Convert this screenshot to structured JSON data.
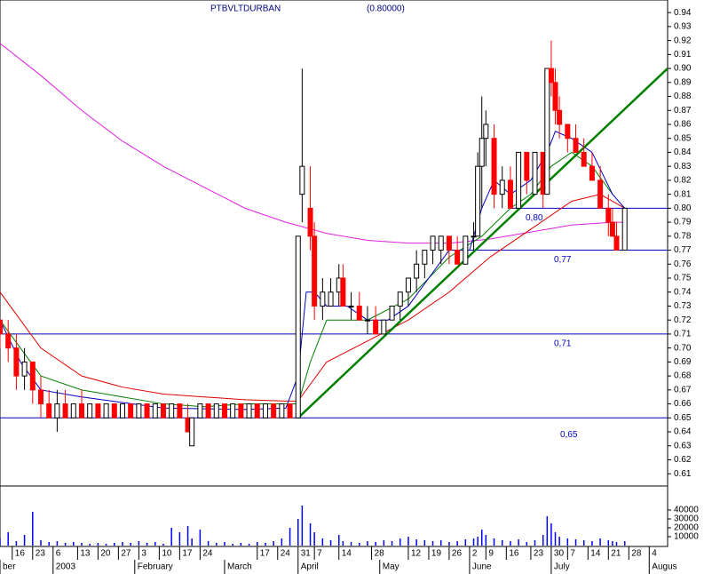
{
  "chart_data": {
    "type": "candlestick",
    "title": "PTBVLTDURBAN",
    "subtitle": "(0.80000)",
    "xlim": [
      0,
      163.5
    ],
    "ylim": [
      0.6025,
      0.949
    ],
    "x": [
      0,
      2,
      4,
      6,
      8,
      10,
      12,
      14,
      16,
      18,
      20,
      22,
      24,
      26,
      28,
      30,
      32,
      34,
      36,
      38,
      40,
      42,
      44,
      46,
      47,
      49,
      51,
      53,
      55,
      57,
      59,
      61,
      63,
      65,
      67,
      69,
      71,
      73,
      74,
      76,
      77,
      79,
      81,
      83,
      84,
      86,
      88,
      90,
      92,
      94,
      96,
      98,
      100,
      102,
      104,
      106,
      108,
      110,
      112,
      114,
      116,
      117,
      118,
      119,
      121,
      123,
      125,
      127,
      129,
      131,
      133,
      134,
      135,
      136,
      137,
      139,
      141,
      143,
      145,
      147,
      149,
      150,
      151,
      153
    ],
    "open": [
      0.72,
      0.71,
      0.7,
      0.68,
      0.69,
      0.67,
      0.66,
      0.65,
      0.66,
      0.65,
      0.66,
      0.65,
      0.66,
      0.65,
      0.66,
      0.65,
      0.66,
      0.65,
      0.66,
      0.65,
      0.66,
      0.65,
      0.66,
      0.65,
      0.63,
      0.65,
      0.66,
      0.65,
      0.66,
      0.65,
      0.66,
      0.65,
      0.66,
      0.65,
      0.66,
      0.65,
      0.66,
      0.65,
      0.81,
      0.8,
      0.78,
      0.73,
      0.73,
      0.74,
      0.75,
      0.73,
      0.73,
      0.72,
      0.72,
      0.71,
      0.72,
      0.73,
      0.74,
      0.75,
      0.76,
      0.77,
      0.77,
      0.78,
      0.77,
      0.76,
      0.78,
      0.78,
      0.83,
      0.85,
      0.85,
      0.81,
      0.82,
      0.8,
      0.84,
      0.81,
      0.84,
      0.81,
      0.9,
      0.89,
      0.87,
      0.86,
      0.85,
      0.84,
      0.83,
      0.82,
      0.8,
      0.79,
      0.78,
      0.77
    ],
    "high": [
      0.72,
      0.72,
      0.71,
      0.7,
      0.69,
      0.68,
      0.67,
      0.67,
      0.67,
      0.66,
      0.67,
      0.66,
      0.66,
      0.66,
      0.66,
      0.66,
      0.66,
      0.66,
      0.66,
      0.66,
      0.66,
      0.66,
      0.66,
      0.66,
      0.65,
      0.66,
      0.66,
      0.66,
      0.66,
      0.66,
      0.66,
      0.66,
      0.66,
      0.66,
      0.66,
      0.66,
      0.66,
      0.78,
      0.9,
      0.83,
      0.79,
      0.75,
      0.75,
      0.76,
      0.76,
      0.74,
      0.74,
      0.73,
      0.73,
      0.72,
      0.73,
      0.74,
      0.75,
      0.77,
      0.77,
      0.78,
      0.78,
      0.78,
      0.78,
      0.78,
      0.79,
      0.84,
      0.88,
      0.87,
      0.86,
      0.83,
      0.83,
      0.84,
      0.84,
      0.84,
      0.84,
      0.9,
      0.92,
      0.9,
      0.88,
      0.86,
      0.86,
      0.85,
      0.84,
      0.83,
      0.81,
      0.8,
      0.79,
      0.8
    ],
    "low": [
      0.7,
      0.69,
      0.67,
      0.67,
      0.66,
      0.65,
      0.65,
      0.64,
      0.65,
      0.65,
      0.65,
      0.65,
      0.65,
      0.65,
      0.65,
      0.65,
      0.65,
      0.65,
      0.65,
      0.65,
      0.65,
      0.65,
      0.65,
      0.64,
      0.63,
      0.65,
      0.65,
      0.65,
      0.65,
      0.65,
      0.65,
      0.65,
      0.65,
      0.65,
      0.65,
      0.65,
      0.65,
      0.65,
      0.79,
      0.77,
      0.72,
      0.72,
      0.73,
      0.73,
      0.73,
      0.72,
      0.72,
      0.71,
      0.71,
      0.71,
      0.72,
      0.72,
      0.73,
      0.74,
      0.75,
      0.76,
      0.76,
      0.76,
      0.76,
      0.76,
      0.77,
      0.78,
      0.8,
      0.83,
      0.8,
      0.8,
      0.8,
      0.8,
      0.81,
      0.81,
      0.8,
      0.81,
      0.88,
      0.86,
      0.85,
      0.84,
      0.84,
      0.83,
      0.82,
      0.8,
      0.78,
      0.78,
      0.77,
      0.77
    ],
    "close": [
      0.71,
      0.7,
      0.68,
      0.69,
      0.67,
      0.66,
      0.65,
      0.66,
      0.65,
      0.66,
      0.65,
      0.66,
      0.65,
      0.66,
      0.65,
      0.66,
      0.65,
      0.66,
      0.65,
      0.66,
      0.65,
      0.66,
      0.65,
      0.64,
      0.65,
      0.66,
      0.65,
      0.66,
      0.65,
      0.66,
      0.65,
      0.66,
      0.65,
      0.66,
      0.65,
      0.66,
      0.65,
      0.78,
      0.83,
      0.78,
      0.73,
      0.74,
      0.74,
      0.75,
      0.73,
      0.73,
      0.72,
      0.72,
      0.71,
      0.72,
      0.73,
      0.74,
      0.75,
      0.76,
      0.77,
      0.78,
      0.78,
      0.77,
      0.76,
      0.78,
      0.78,
      0.83,
      0.85,
      0.86,
      0.81,
      0.82,
      0.8,
      0.84,
      0.82,
      0.84,
      0.81,
      0.9,
      0.89,
      0.87,
      0.86,
      0.85,
      0.84,
      0.83,
      0.82,
      0.8,
      0.79,
      0.78,
      0.77,
      0.8
    ],
    "up_color": "#ffffff",
    "down_color": "#ff0000",
    "yticks": [
      0.61,
      0.62,
      0.63,
      0.64,
      0.65,
      0.66,
      0.67,
      0.68,
      0.69,
      {
        "value": 0.7,
        "label": "0.70"
      },
      0.71,
      0.72,
      0.73,
      0.74,
      0.75,
      0.76,
      0.77,
      0.78,
      0.79,
      {
        "value": 0.8,
        "label": "0.80"
      },
      0.81,
      0.82,
      0.83,
      0.84,
      0.85,
      0.86,
      0.87,
      0.88,
      0.89,
      {
        "value": 0.9,
        "label": "0.90"
      },
      0.91,
      0.92,
      0.93,
      0.94
    ],
    "xticks": [
      {
        "value": 3,
        "label": "16"
      },
      {
        "value": 8,
        "label": "23"
      },
      {
        "value": 13,
        "label": "6"
      },
      {
        "value": 19,
        "label": "13"
      },
      {
        "value": 24,
        "label": "20"
      },
      {
        "value": 29,
        "label": "27"
      },
      {
        "value": 34,
        "label": "3"
      },
      {
        "value": 39,
        "label": "10"
      },
      {
        "value": 44,
        "label": "17"
      },
      {
        "value": 49,
        "label": "24"
      },
      {
        "value": 63,
        "label": "17"
      },
      {
        "value": 68,
        "label": "24"
      },
      {
        "value": 73,
        "label": "31"
      },
      {
        "value": 77,
        "label": "7"
      },
      {
        "value": 83,
        "label": "14"
      },
      {
        "value": 91,
        "label": "28"
      },
      {
        "value": 100,
        "label": "12"
      },
      {
        "value": 105,
        "label": "19"
      },
      {
        "value": 110,
        "label": "26"
      },
      {
        "value": 115,
        "label": "2"
      },
      {
        "value": 119,
        "label": "9"
      },
      {
        "value": 124,
        "label": "16"
      },
      {
        "value": 130,
        "label": "23"
      },
      {
        "value": 135,
        "label": "30"
      },
      {
        "value": 139,
        "label": "7"
      },
      {
        "value": 144,
        "label": "14"
      },
      {
        "value": 149,
        "label": "21"
      },
      {
        "value": 154,
        "label": "28"
      },
      {
        "value": 159,
        "label": "4"
      }
    ],
    "month_labels": [
      {
        "value": 0,
        "label": "ber"
      },
      {
        "value": 13,
        "label": "2003"
      },
      {
        "value": 33,
        "label": "February"
      },
      {
        "value": 55,
        "label": "March"
      },
      {
        "value": 73,
        "label": "April"
      },
      {
        "value": 93,
        "label": "May"
      },
      {
        "value": 115,
        "label": "June"
      },
      {
        "value": 135,
        "label": "July"
      },
      {
        "value": 159,
        "label": "Augus"
      }
    ],
    "averages": [
      {
        "color": "#e020e0",
        "x": [
          0,
          10,
          20,
          30,
          40,
          50,
          60,
          70,
          80,
          90,
          100,
          110,
          120,
          130,
          140,
          150,
          153
        ],
        "values": [
          0.918,
          0.895,
          0.87,
          0.848,
          0.83,
          0.815,
          0.8,
          0.79,
          0.782,
          0.777,
          0.775,
          0.775,
          0.778,
          0.783,
          0.788,
          0.79,
          0.79
        ]
      },
      {
        "color": "#e00000",
        "x": [
          0,
          10,
          20,
          30,
          40,
          50,
          60,
          70,
          73,
          80,
          90,
          100,
          110,
          120,
          130,
          140,
          147,
          153
        ],
        "values": [
          0.74,
          0.7,
          0.68,
          0.672,
          0.667,
          0.665,
          0.663,
          0.662,
          0.662,
          0.69,
          0.705,
          0.72,
          0.74,
          0.765,
          0.785,
          0.805,
          0.81,
          0.8
        ]
      },
      {
        "color": "#008000",
        "x": [
          0,
          5,
          10,
          20,
          30,
          40,
          50,
          60,
          70,
          73,
          76,
          80,
          90,
          100,
          110,
          118,
          125,
          130,
          135,
          140,
          145,
          150
        ],
        "values": [
          0.72,
          0.7,
          0.68,
          0.67,
          0.665,
          0.66,
          0.658,
          0.66,
          0.66,
          0.66,
          0.69,
          0.72,
          0.72,
          0.735,
          0.765,
          0.78,
          0.8,
          0.81,
          0.83,
          0.84,
          0.83,
          0.81
        ]
      },
      {
        "color": "#0000c0",
        "x": [
          0,
          5,
          10,
          20,
          40,
          60,
          70,
          73,
          75,
          77,
          80,
          85,
          90,
          95,
          100,
          105,
          110,
          115,
          118,
          121,
          125,
          130,
          134,
          136,
          140,
          145,
          150,
          153
        ],
        "values": [
          0.72,
          0.69,
          0.67,
          0.665,
          0.657,
          0.656,
          0.657,
          0.68,
          0.74,
          0.74,
          0.73,
          0.73,
          0.72,
          0.72,
          0.73,
          0.75,
          0.77,
          0.77,
          0.8,
          0.82,
          0.81,
          0.82,
          0.84,
          0.855,
          0.85,
          0.84,
          0.81,
          0.8
        ]
      }
    ],
    "trendline": {
      "color": "#008000",
      "x": [
        73,
        163.5
      ],
      "values": [
        0.65,
        0.9
      ]
    },
    "levels": [
      {
        "value": 0.8,
        "label": "0,80",
        "x0": 125
      },
      {
        "value": 0.77,
        "label": "0,77",
        "x0": 114
      },
      {
        "value": 0.71,
        "label": "0,71",
        "x0": 0
      },
      {
        "value": 0.65,
        "label": "0,65",
        "x0": 0
      }
    ],
    "level_color": "#0000c0",
    "volume": {
      "color": "#0000ff",
      "ylim": [
        0,
        66000
      ],
      "yticks": [
        10000,
        20000,
        30000,
        40000
      ],
      "values": [
        8000,
        15000,
        5000,
        12000,
        38000,
        6000,
        4000,
        5000,
        3000,
        4000,
        3000,
        2000,
        3000,
        2000,
        3000,
        4000,
        3000,
        5000,
        3000,
        4000,
        2000,
        20000,
        15000,
        22000,
        8000,
        18000,
        5000,
        3000,
        4000,
        2000,
        3000,
        2000,
        4000,
        3000,
        5000,
        8000,
        20000,
        30000,
        45000,
        25000,
        15000,
        8000,
        6000,
        12000,
        5000,
        4000,
        3000,
        5000,
        4000,
        6000,
        5000,
        8000,
        10000,
        7000,
        6000,
        5000,
        6000,
        4000,
        5000,
        7000,
        8000,
        10000,
        18000,
        12000,
        8000,
        6000,
        5000,
        7000,
        4000,
        6000,
        12000,
        33000,
        25000,
        15000,
        10000,
        8000,
        7000,
        6000,
        5000,
        8000,
        6000,
        5000,
        4000,
        5000
      ]
    }
  }
}
